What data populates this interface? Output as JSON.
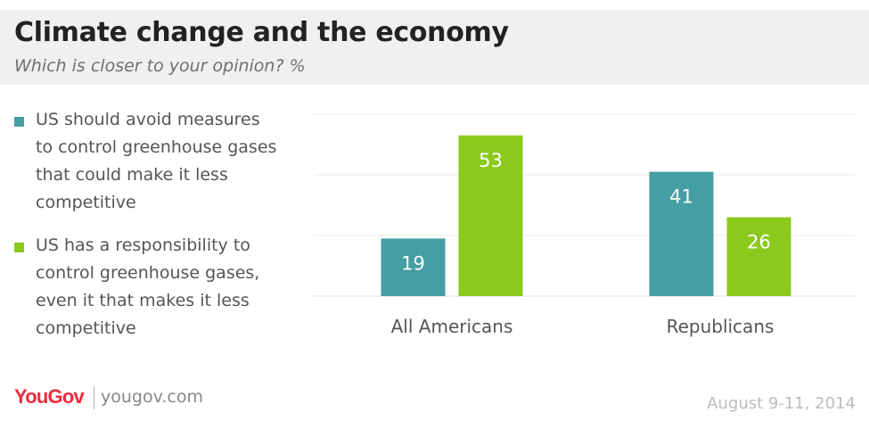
{
  "header": {
    "title": "Climate change and the economy",
    "subtitle": "Which is closer to your opinion? %"
  },
  "legend": [
    {
      "label": "US should avoid measures\nto control greenhouse gases\nthat could make it less\ncompetitive",
      "color": "#449ea2"
    },
    {
      "label": "US has a responsibility to\ncontrol greenhouse gases,\neven it that makes it less\ncompetitive",
      "color": "#8bc91d"
    }
  ],
  "chart_data": {
    "type": "bar",
    "categories": [
      "All Americans",
      "Republicans"
    ],
    "series": [
      {
        "name": "US should avoid measures to control greenhouse gases that could make it less competitive",
        "values": [
          19,
          41
        ],
        "color": "#449ea2"
      },
      {
        "name": "US has a responsibility to control greenhouse gases, even it that makes it less competitive",
        "values": [
          53,
          26
        ],
        "color": "#8bc91d"
      }
    ],
    "ylim": [
      0,
      60
    ],
    "grid": true,
    "legend_position": "left"
  },
  "footer": {
    "logo": "YouGov",
    "site": "yougov.com",
    "date": "August 9-11, 2014"
  }
}
